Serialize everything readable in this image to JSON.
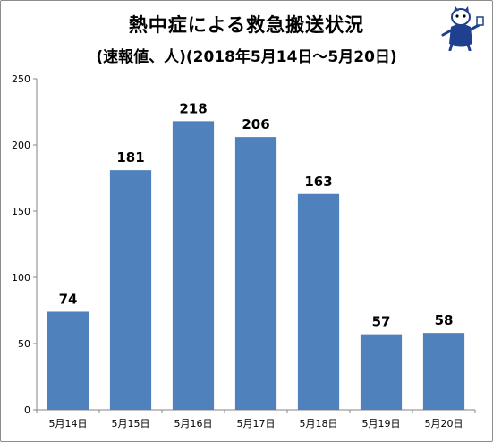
{
  "chart_data": {
    "type": "bar",
    "title": "熱中症による救急搬送状況",
    "subtitle": "(速報値、人)(2018年5月14日～5月20日)",
    "categories": [
      "5月14日",
      "5月15日",
      "5月16日",
      "5月17日",
      "5月18日",
      "5月19日",
      "5月20日"
    ],
    "series": [
      {
        "values": [
          74,
          181,
          218,
          206,
          163,
          57,
          58
        ]
      }
    ],
    "ylim": [
      0,
      250
    ],
    "yticks": [
      0,
      50,
      100,
      150,
      200,
      250
    ],
    "grid": false,
    "bar_color": "#4f81bd",
    "show_data_labels": true
  },
  "decoration": {
    "icon": "mascot-icon"
  }
}
